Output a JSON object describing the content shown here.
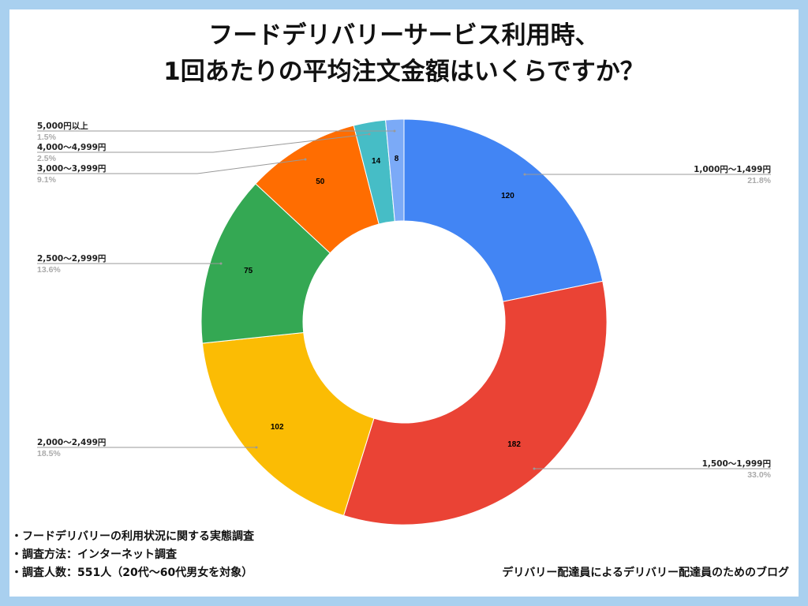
{
  "title_line1": "フードデリバリーサービス利用時、",
  "title_line2": "1回あたりの平均注文金額はいくらですか？",
  "chart_data": {
    "type": "pie",
    "donut": true,
    "start": "top, clockwise",
    "slices": [
      {
        "label": "1,000円〜1,499円",
        "value": 120,
        "percent": "21.8%",
        "color": "#4285f4"
      },
      {
        "label": "1,500〜1,999円",
        "value": 182,
        "percent": "33.0%",
        "color": "#ea4335"
      },
      {
        "label": "2,000〜2,499円",
        "value": 102,
        "percent": "18.5%",
        "color": "#fbbc04"
      },
      {
        "label": "2,500〜2,999円",
        "value": 75,
        "percent": "13.6%",
        "color": "#34a853"
      },
      {
        "label": "3,000〜3,999円",
        "value": 50,
        "percent": "9.1%",
        "color": "#ff6d01"
      },
      {
        "label": "4,000〜4,999円",
        "value": 14,
        "percent": "2.5%",
        "color": "#46bdc6"
      },
      {
        "label": "5,000円以上",
        "value": 8,
        "percent": "1.5%",
        "color": "#7baaf7"
      }
    ]
  },
  "notes": [
    "・フードデリバリーの利用状況に関する実態調査",
    "・調査方法：インターネット調査",
    "・調査人数：551人（20代〜60代男女を対象）"
  ],
  "credit": "デリバリー配達員によるデリバリー配達員のためのブログ"
}
